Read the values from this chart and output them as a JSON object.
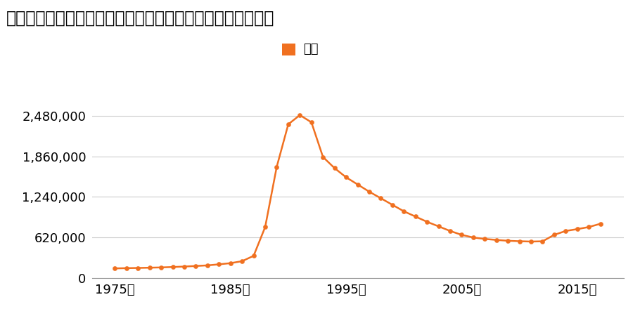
{
  "title": "神奈川県川崎市幸区下平間字稲荷耕地１１１番６の地価推移",
  "legend_label": "価格",
  "line_color": "#f07020",
  "years": [
    1975,
    1976,
    1977,
    1978,
    1979,
    1980,
    1981,
    1982,
    1983,
    1984,
    1985,
    1986,
    1987,
    1988,
    1989,
    1990,
    1991,
    1992,
    1993,
    1994,
    1995,
    1996,
    1997,
    1998,
    1999,
    2000,
    2001,
    2002,
    2003,
    2004,
    2005,
    2006,
    2007,
    2008,
    2009,
    2010,
    2011,
    2012,
    2013,
    2014,
    2015,
    2016,
    2017
  ],
  "values": [
    148000,
    152000,
    155000,
    159000,
    163000,
    169000,
    176000,
    185000,
    194000,
    210000,
    228000,
    258000,
    340000,
    780000,
    1700000,
    2350000,
    2490000,
    2380000,
    1850000,
    1680000,
    1540000,
    1430000,
    1320000,
    1220000,
    1120000,
    1020000,
    940000,
    860000,
    790000,
    720000,
    660000,
    620000,
    598000,
    583000,
    570000,
    563000,
    558000,
    562000,
    660000,
    720000,
    748000,
    780000,
    830000
  ],
  "ylim_max": 2800000,
  "yticks": [
    0,
    620000,
    1240000,
    1860000,
    2480000
  ],
  "ytick_labels": [
    "0",
    "620,000",
    "1,240,000",
    "1,860,000",
    "2,480,000"
  ],
  "xlim": [
    1973,
    2019
  ],
  "xtick_years": [
    1975,
    1985,
    1995,
    2005,
    2015
  ],
  "xtick_labels": [
    "1975年",
    "1985年",
    "1995年",
    "2005年",
    "2015年"
  ],
  "bg_color": "#ffffff",
  "grid_color": "#cccccc",
  "title_fontsize": 17,
  "axis_fontsize": 13,
  "legend_fontsize": 13
}
